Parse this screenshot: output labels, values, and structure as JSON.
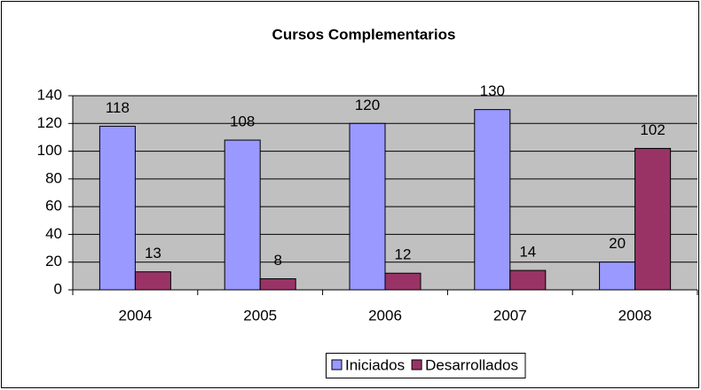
{
  "chart_data": {
    "type": "bar",
    "title": "Cursos Complementarios",
    "categories": [
      "2004",
      "2005",
      "2006",
      "2007",
      "2008"
    ],
    "series": [
      {
        "name": "Iniciados",
        "color": "#9999ff",
        "values": [
          118,
          108,
          120,
          130,
          20
        ]
      },
      {
        "name": "Desarrollados",
        "color": "#993366",
        "values": [
          13,
          8,
          12,
          14,
          102
        ]
      }
    ],
    "ylim": [
      0,
      140
    ],
    "yticks": [
      0,
      20,
      40,
      60,
      80,
      100,
      120,
      140
    ],
    "grid": true,
    "legend": "bottom"
  }
}
